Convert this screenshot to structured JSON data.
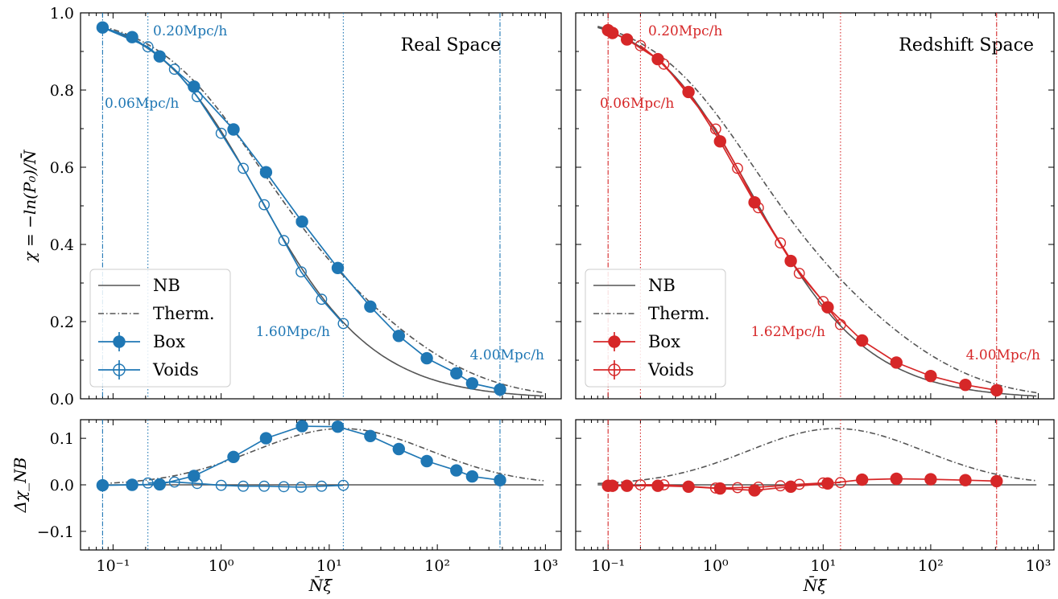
{
  "figure": {
    "ylabel_top": "χ = −ln(P₀)/N̄",
    "ylabel_bottom": "Δχ_NB",
    "xlabel": "N̄ξ̄",
    "colors": {
      "blue": "#1f77b4",
      "red": "#d62728",
      "model": "#555555",
      "axis": "#000000"
    }
  },
  "chart_data": [
    {
      "type": "line",
      "panel": "top-left",
      "title": "Real Space",
      "x_scale": "log",
      "xlim": [
        0.05,
        1400
      ],
      "ylim": [
        0.0,
        1.0
      ],
      "y_ticks": [
        "0.0",
        "0.2",
        "0.4",
        "0.6",
        "0.8",
        "1.0"
      ],
      "x_ticks": [
        "10⁻¹",
        "10⁰",
        "10¹",
        "10²",
        "10³"
      ],
      "legend": {
        "placement": "lower-left",
        "entries": [
          "NB",
          "Therm.",
          "Box",
          "Voids"
        ]
      },
      "vlines": [
        {
          "x": 0.08,
          "style": "dashdot",
          "label": "0.06Mpc/h"
        },
        {
          "x": 0.21,
          "style": "dotted",
          "label": "0.20Mpc/h"
        },
        {
          "x": 13.5,
          "style": "dotted",
          "label": "1.60Mpc/h"
        },
        {
          "x": 380,
          "style": "dashdot",
          "label": "4.00Mpc/h"
        }
      ],
      "series": [
        {
          "name": "Box",
          "marker": "filled-circle",
          "x": [
            0.08,
            0.15,
            0.27,
            0.56,
            1.3,
            2.6,
            5.6,
            12,
            24,
            44,
            80,
            150,
            210,
            380
          ],
          "y": [
            0.962,
            0.937,
            0.887,
            0.809,
            0.698,
            0.587,
            0.459,
            0.339,
            0.239,
            0.163,
            0.105,
            0.066,
            0.04,
            0.024
          ]
        },
        {
          "name": "Voids",
          "marker": "open-circle",
          "x": [
            0.08,
            0.21,
            0.37,
            0.6,
            1.0,
            1.6,
            2.5,
            3.8,
            5.5,
            8.5,
            13.5
          ],
          "y": [
            0.962,
            0.912,
            0.854,
            0.783,
            0.688,
            0.597,
            0.503,
            0.41,
            0.329,
            0.258,
            0.195
          ]
        },
        {
          "name": "NB",
          "kind": "model"
        },
        {
          "name": "Therm.",
          "kind": "model"
        }
      ]
    },
    {
      "type": "line",
      "panel": "top-right",
      "title": "Redshift Space",
      "x_scale": "log",
      "xlim": [
        0.05,
        1400
      ],
      "ylim": [
        0.0,
        1.0
      ],
      "y_ticks": [],
      "x_ticks": [
        "10⁻¹",
        "10⁰",
        "10¹",
        "10²",
        "10³"
      ],
      "legend": {
        "placement": "lower-left",
        "entries": [
          "NB",
          "Therm.",
          "Box",
          "Voids"
        ]
      },
      "vlines": [
        {
          "x": 0.1,
          "style": "dashdot",
          "label": "0.06Mpc/h"
        },
        {
          "x": 0.2,
          "style": "dotted",
          "label": "0.20Mpc/h"
        },
        {
          "x": 14.5,
          "style": "dotted",
          "label": "1.62Mpc/h"
        },
        {
          "x": 410,
          "style": "dashdot",
          "label": "4.00Mpc/h"
        }
      ],
      "series": [
        {
          "name": "Box",
          "marker": "filled-circle",
          "x": [
            0.1,
            0.11,
            0.15,
            0.29,
            0.56,
            1.1,
            2.3,
            5.0,
            11,
            23,
            48,
            100,
            210,
            410
          ],
          "y": [
            0.955,
            0.948,
            0.931,
            0.88,
            0.795,
            0.667,
            0.509,
            0.357,
            0.237,
            0.151,
            0.094,
            0.059,
            0.036,
            0.022
          ]
        },
        {
          "name": "Voids",
          "marker": "open-circle",
          "x": [
            0.2,
            0.33,
            1.0,
            1.6,
            2.5,
            4.0,
            6.0,
            10,
            14.5
          ],
          "y": [
            0.915,
            0.867,
            0.699,
            0.597,
            0.495,
            0.404,
            0.325,
            0.252,
            0.192
          ]
        },
        {
          "name": "NB",
          "kind": "model"
        },
        {
          "name": "Therm.",
          "kind": "model"
        }
      ]
    },
    {
      "type": "line",
      "panel": "bottom-left",
      "x_scale": "log",
      "xlim": [
        0.05,
        1400
      ],
      "ylim": [
        -0.14,
        0.14
      ],
      "y_ticks": [
        "−0.1",
        "0.0",
        "0.1"
      ],
      "x_ticks": [
        "10⁻¹",
        "10⁰",
        "10¹",
        "10²",
        "10³"
      ],
      "vlines": [
        {
          "x": 0.08,
          "style": "dashdot"
        },
        {
          "x": 0.21,
          "style": "dotted"
        },
        {
          "x": 13.5,
          "style": "dotted"
        },
        {
          "x": 380,
          "style": "dashdot"
        }
      ],
      "series": [
        {
          "name": "Box",
          "marker": "filled-circle",
          "x": [
            0.08,
            0.15,
            0.27,
            0.56,
            1.3,
            2.6,
            5.6,
            12,
            24,
            44,
            80,
            150,
            210,
            380
          ],
          "y": [
            -0.001,
            0.0,
            0.001,
            0.019,
            0.06,
            0.1,
            0.126,
            0.125,
            0.105,
            0.077,
            0.051,
            0.031,
            0.018,
            0.01
          ]
        },
        {
          "name": "Voids",
          "marker": "open-circle",
          "x": [
            0.21,
            0.37,
            0.6,
            1.0,
            1.6,
            2.5,
            3.8,
            5.5,
            8.5,
            13.5
          ],
          "y": [
            0.004,
            0.006,
            0.003,
            -0.001,
            -0.003,
            -0.003,
            -0.004,
            -0.005,
            -0.003,
            -0.001
          ]
        },
        {
          "name": "NB",
          "kind": "model"
        },
        {
          "name": "Therm.",
          "kind": "model"
        }
      ]
    },
    {
      "type": "line",
      "panel": "bottom-right",
      "x_scale": "log",
      "xlim": [
        0.05,
        1400
      ],
      "ylim": [
        -0.14,
        0.14
      ],
      "y_ticks": [],
      "x_ticks": [
        "10⁻¹",
        "10⁰",
        "10¹",
        "10²",
        "10³"
      ],
      "vlines": [
        {
          "x": 0.1,
          "style": "dashdot"
        },
        {
          "x": 0.2,
          "style": "dotted"
        },
        {
          "x": 14.5,
          "style": "dotted"
        },
        {
          "x": 410,
          "style": "dashdot"
        }
      ],
      "series": [
        {
          "name": "Box",
          "marker": "filled-circle",
          "x": [
            0.1,
            0.11,
            0.15,
            0.29,
            0.56,
            1.1,
            2.3,
            5.0,
            11,
            23,
            48,
            100,
            210,
            410
          ],
          "y": [
            -0.002,
            -0.002,
            -0.002,
            -0.002,
            -0.004,
            -0.008,
            -0.012,
            -0.004,
            0.003,
            0.011,
            0.013,
            0.012,
            0.01,
            0.008
          ]
        },
        {
          "name": "Voids",
          "marker": "open-circle",
          "x": [
            0.2,
            0.33,
            1.0,
            1.6,
            2.5,
            4.0,
            6.0,
            10,
            14.5
          ],
          "y": [
            0.0,
            0.0,
            -0.007,
            -0.006,
            -0.005,
            -0.002,
            0.001,
            0.004,
            0.005
          ]
        },
        {
          "name": "NB",
          "kind": "model"
        },
        {
          "name": "Therm.",
          "kind": "model"
        }
      ]
    }
  ]
}
